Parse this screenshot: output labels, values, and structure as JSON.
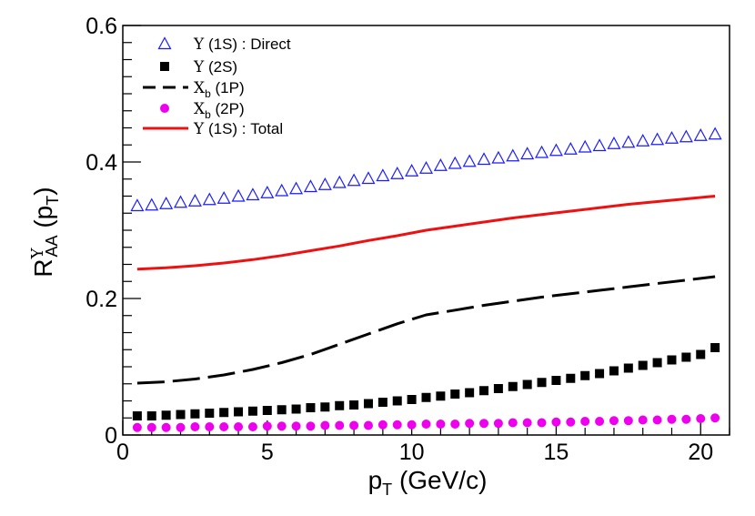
{
  "chart_data": {
    "type": "scatter",
    "title": "",
    "xlabel": {
      "main": "p",
      "sub": "T",
      "rest": " (GeV/c)"
    },
    "ylabel": {
      "main": "R",
      "sup": "Υ",
      "sub": "AA",
      "mid": " (p",
      "sub2": "T",
      "end": ")"
    },
    "xlim": [
      0,
      21
    ],
    "ylim": [
      0,
      0.6
    ],
    "x_ticks": [
      0,
      5,
      10,
      15,
      20
    ],
    "x_tick_labels": [
      "0",
      "5",
      "10",
      "15",
      "20"
    ],
    "y_ticks": [
      0,
      0.2,
      0.4,
      0.6
    ],
    "y_tick_labels": [
      "0",
      "0.2",
      "0.4",
      "0.6"
    ],
    "grid": false,
    "legend_position": "top-left",
    "series": [
      {
        "name": "Υ (1S) : Direct",
        "legend": {
          "sym": "Υ",
          "sub": "",
          "text": " (1S) : Direct"
        },
        "style": "open-triangle",
        "color": "#1a1aff",
        "x": [
          0.5,
          1.0,
          1.5,
          2.0,
          2.5,
          3.0,
          3.5,
          4.0,
          4.5,
          5.0,
          5.5,
          6.0,
          6.5,
          7.0,
          7.5,
          8.0,
          8.5,
          9.0,
          9.5,
          10.0,
          10.5,
          11.0,
          11.5,
          12.0,
          12.5,
          13.0,
          13.5,
          14.0,
          14.5,
          15.0,
          15.5,
          16.0,
          16.5,
          17.0,
          17.5,
          18.0,
          18.5,
          19.0,
          19.5,
          20.0,
          20.5
        ],
        "y": [
          0.336,
          0.337,
          0.339,
          0.341,
          0.343,
          0.345,
          0.347,
          0.35,
          0.352,
          0.355,
          0.358,
          0.361,
          0.364,
          0.367,
          0.37,
          0.373,
          0.376,
          0.38,
          0.383,
          0.387,
          0.391,
          0.395,
          0.398,
          0.401,
          0.404,
          0.406,
          0.409,
          0.412,
          0.414,
          0.417,
          0.419,
          0.422,
          0.424,
          0.427,
          0.429,
          0.431,
          0.433,
          0.435,
          0.437,
          0.439,
          0.441
        ]
      },
      {
        "name": "Υ (2S)",
        "legend": {
          "sym": "Υ",
          "sub": "",
          "text": " (2S)"
        },
        "style": "filled-square",
        "color": "#000000",
        "x": [
          0.5,
          1.0,
          1.5,
          2.0,
          2.5,
          3.0,
          3.5,
          4.0,
          4.5,
          5.0,
          5.5,
          6.0,
          6.5,
          7.0,
          7.5,
          8.0,
          8.5,
          9.0,
          9.5,
          10.0,
          10.5,
          11.0,
          11.5,
          12.0,
          12.5,
          13.0,
          13.5,
          14.0,
          14.5,
          15.0,
          15.5,
          16.0,
          16.5,
          17.0,
          17.5,
          18.0,
          18.5,
          19.0,
          19.5,
          20.0,
          20.5
        ],
        "y": [
          0.028,
          0.028,
          0.029,
          0.03,
          0.031,
          0.032,
          0.033,
          0.034,
          0.035,
          0.036,
          0.037,
          0.038,
          0.04,
          0.041,
          0.043,
          0.044,
          0.046,
          0.048,
          0.05,
          0.052,
          0.055,
          0.057,
          0.06,
          0.062,
          0.065,
          0.068,
          0.071,
          0.074,
          0.077,
          0.08,
          0.083,
          0.087,
          0.09,
          0.094,
          0.098,
          0.102,
          0.106,
          0.11,
          0.114,
          0.118,
          0.128
        ]
      },
      {
        "name": "Χb (1P)",
        "legend": {
          "sym": "Χ",
          "sub": "b",
          "text": " (1P)"
        },
        "style": "dashed-line",
        "color": "#000000",
        "x": [
          0.5,
          1.5,
          2.5,
          3.5,
          4.5,
          5.5,
          6.5,
          7.5,
          8.5,
          9.5,
          10.5,
          11.5,
          12.5,
          13.5,
          14.5,
          15.5,
          16.5,
          17.5,
          18.5,
          19.5,
          20.5
        ],
        "y": [
          0.076,
          0.078,
          0.082,
          0.088,
          0.096,
          0.106,
          0.118,
          0.133,
          0.148,
          0.163,
          0.176,
          0.183,
          0.19,
          0.196,
          0.202,
          0.207,
          0.212,
          0.217,
          0.222,
          0.227,
          0.232
        ]
      },
      {
        "name": "Χb (2P)",
        "legend": {
          "sym": "Χ",
          "sub": "b",
          "text": " (2P)"
        },
        "style": "filled-circle",
        "color": "#ee00ee",
        "x": [
          0.5,
          1.0,
          1.5,
          2.0,
          2.5,
          3.0,
          3.5,
          4.0,
          4.5,
          5.0,
          5.5,
          6.0,
          6.5,
          7.0,
          7.5,
          8.0,
          8.5,
          9.0,
          9.5,
          10.0,
          10.5,
          11.0,
          11.5,
          12.0,
          12.5,
          13.0,
          13.5,
          14.0,
          14.5,
          15.0,
          15.5,
          16.0,
          16.5,
          17.0,
          17.5,
          18.0,
          18.5,
          19.0,
          19.5,
          20.0,
          20.5
        ],
        "y": [
          0.011,
          0.011,
          0.011,
          0.011,
          0.012,
          0.012,
          0.012,
          0.012,
          0.012,
          0.013,
          0.013,
          0.013,
          0.013,
          0.014,
          0.014,
          0.014,
          0.014,
          0.015,
          0.015,
          0.015,
          0.016,
          0.016,
          0.016,
          0.017,
          0.017,
          0.017,
          0.018,
          0.018,
          0.018,
          0.019,
          0.019,
          0.02,
          0.02,
          0.021,
          0.021,
          0.022,
          0.022,
          0.023,
          0.023,
          0.024,
          0.025
        ]
      },
      {
        "name": "Υ (1S) : Total",
        "legend": {
          "sym": "Υ",
          "sub": "",
          "text": " (1S) : Total"
        },
        "style": "solid-line",
        "color": "#ee1111",
        "x": [
          0.5,
          1.5,
          2.5,
          3.5,
          4.5,
          5.5,
          6.5,
          7.5,
          8.5,
          9.5,
          10.5,
          11.5,
          12.5,
          13.5,
          14.5,
          15.5,
          16.5,
          17.5,
          18.5,
          19.5,
          20.5
        ],
        "y": [
          0.243,
          0.245,
          0.248,
          0.252,
          0.257,
          0.263,
          0.27,
          0.277,
          0.285,
          0.292,
          0.3,
          0.306,
          0.312,
          0.318,
          0.323,
          0.328,
          0.333,
          0.338,
          0.342,
          0.346,
          0.35
        ]
      }
    ]
  }
}
